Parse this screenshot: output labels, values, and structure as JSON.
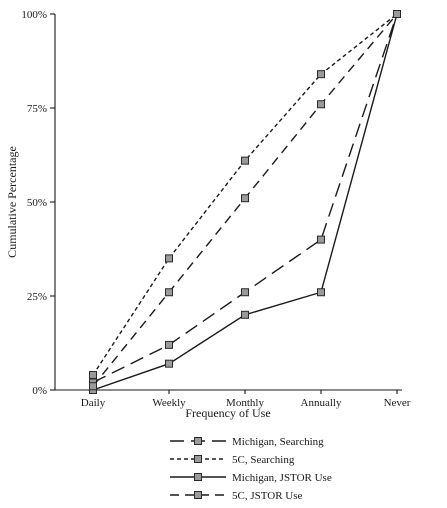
{
  "chart_data": {
    "type": "line",
    "xlabel": "Frequency of Use",
    "ylabel": "Cumulative Percentage",
    "categories": [
      "Daily",
      "Weekly",
      "Monthly",
      "Annually",
      "Never"
    ],
    "yticks": [
      "0%",
      "25%",
      "50%",
      "75%",
      "100%"
    ],
    "ylim": [
      0,
      100
    ],
    "grid": false,
    "legend_position": "bottom-center",
    "series": [
      {
        "name": "Michigan, Searching",
        "dash": "long-dash",
        "values": [
          2,
          12,
          26,
          40,
          100
        ]
      },
      {
        "name": "5C, Searching",
        "dash": "short-dash",
        "values": [
          4,
          35,
          61,
          84,
          100
        ]
      },
      {
        "name": "Michigan, JSTOR Use",
        "dash": "solid",
        "values": [
          0,
          7,
          20,
          26,
          100
        ]
      },
      {
        "name": "5C, JSTOR Use",
        "dash": "medium-dash",
        "values": [
          1,
          26,
          51,
          76,
          100
        ]
      }
    ]
  }
}
